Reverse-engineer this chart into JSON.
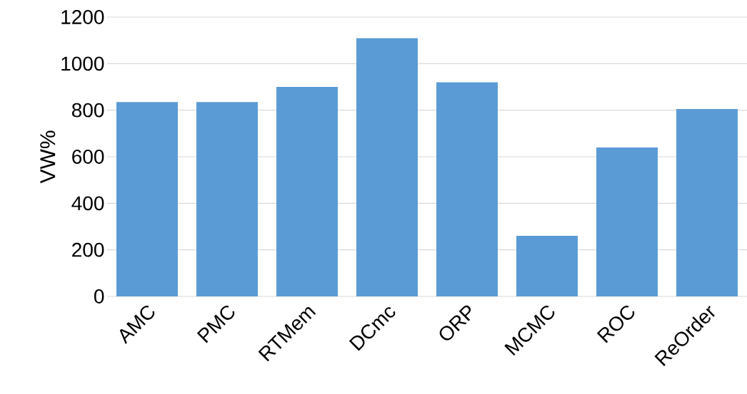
{
  "chart_data": {
    "type": "bar",
    "ylabel": "VW%",
    "categories": [
      "AMC",
      "PMC",
      "RTMem",
      "DCmc",
      "ORP",
      "MCMC",
      "ROC",
      "ReOrder"
    ],
    "values": [
      835,
      835,
      900,
      1110,
      920,
      260,
      640,
      805
    ],
    "color": "#5b9bd5",
    "ylim": [
      0,
      1200
    ],
    "yticks": [
      0,
      200,
      400,
      600,
      800,
      1000,
      1200
    ],
    "grid": "y"
  }
}
